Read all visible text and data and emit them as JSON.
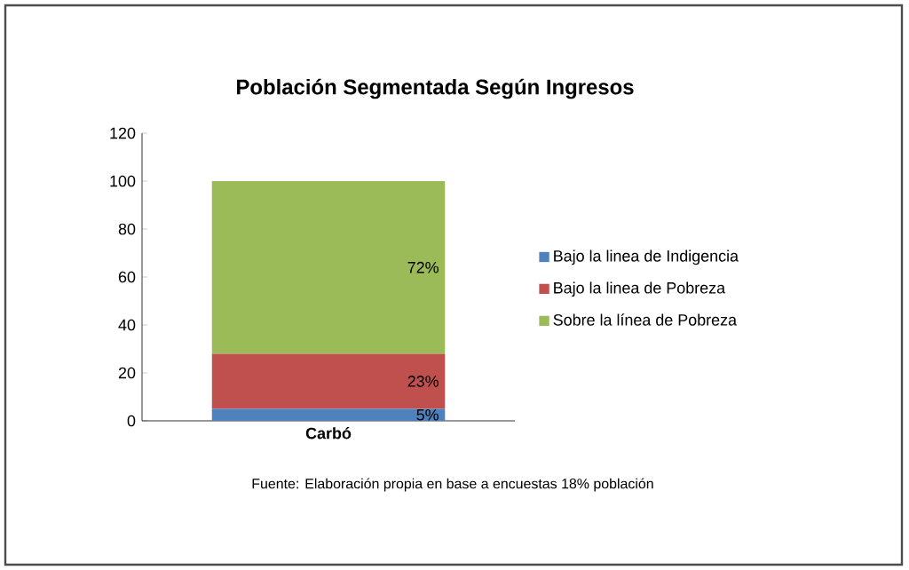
{
  "chart_data": {
    "type": "bar",
    "stacked": true,
    "title": "Población Segmentada Según Ingresos",
    "categories": [
      "Carbó"
    ],
    "series": [
      {
        "name": "Bajo la linea de Indigencia",
        "color": "#4f81bd",
        "values": [
          5
        ],
        "value_labels": [
          "5%"
        ]
      },
      {
        "name": "Bajo la linea de Pobreza",
        "color": "#c0504d",
        "values": [
          23
        ],
        "value_labels": [
          "23%"
        ]
      },
      {
        "name": "Sobre la línea de Pobreza",
        "color": "#9bbb59",
        "values": [
          72
        ],
        "value_labels": [
          "72%"
        ]
      }
    ],
    "ylim": [
      0,
      120
    ],
    "yticks": [
      0,
      20,
      40,
      60,
      80,
      100,
      120
    ],
    "grid": false,
    "legend": "right",
    "annotations": [
      "Fuente: Elaboración propia en base a encuestas 18% población"
    ]
  }
}
